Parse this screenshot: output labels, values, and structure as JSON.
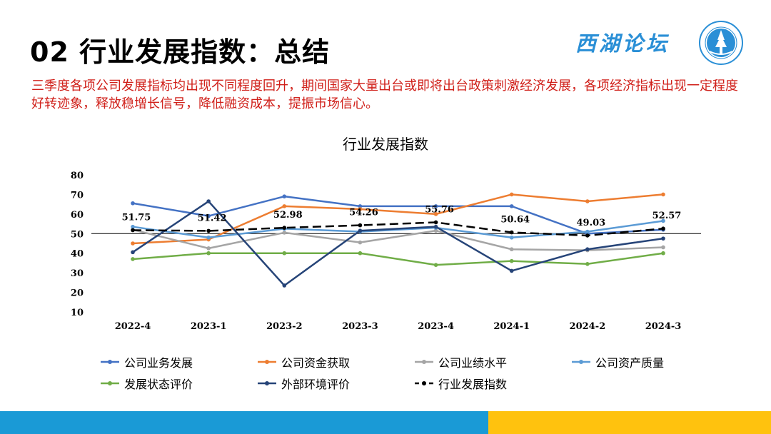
{
  "header": {
    "title": "02 行业发展指数：总结",
    "brand": "西湖论坛"
  },
  "summary": "三季度各项公司发展指标均出现不同程度回升，期间国家大量出台或即将出台政策刺激经济发展，各项经济指标出现一定程度好转迹象，释放稳增长信号，降低融资成本，提振市场信心。",
  "chart_data": {
    "type": "line",
    "title": "行业发展指数",
    "xlabel": "",
    "ylabel": "",
    "ylim": [
      10,
      80
    ],
    "yticks": [
      10,
      20,
      30,
      40,
      50,
      60,
      70,
      80
    ],
    "reference_line": 50,
    "grid": false,
    "legend_position": "bottom",
    "categories": [
      "2022-4",
      "2023-1",
      "2023-2",
      "2023-3",
      "2023-4",
      "2024-1",
      "2024-2",
      "2024-3"
    ],
    "series": [
      {
        "name": "公司业务发展",
        "color": "#4472c4",
        "dashed": false,
        "values": [
          65.5,
          59,
          69,
          64,
          64,
          64,
          50,
          52
        ]
      },
      {
        "name": "公司资金获取",
        "color": "#ed7d31",
        "dashed": false,
        "values": [
          45,
          47,
          64,
          62.5,
          60,
          70,
          66.5,
          70
        ]
      },
      {
        "name": "公司业绩水平",
        "color": "#a5a5a5",
        "dashed": false,
        "values": [
          52,
          42.5,
          50.5,
          45.5,
          51.5,
          42,
          41.5,
          43
        ]
      },
      {
        "name": "公司资产质量",
        "color": "#5b9bd5",
        "dashed": false,
        "values": [
          53.5,
          48,
          52.5,
          51,
          53,
          48,
          51,
          56.5
        ]
      },
      {
        "name": "发展状态评价",
        "color": "#70ad47",
        "dashed": false,
        "values": [
          37,
          40,
          40,
          40,
          34,
          36,
          34.5,
          40
        ]
      },
      {
        "name": "外部环境评价",
        "color": "#264478",
        "dashed": false,
        "values": [
          40.5,
          66.5,
          23.5,
          51.5,
          53.5,
          31,
          42,
          47.5
        ]
      },
      {
        "name": "行业发展指数",
        "color": "#000000",
        "dashed": true,
        "values": [
          51.75,
          51.42,
          52.98,
          54.26,
          55.76,
          50.64,
          49.03,
          52.57
        ],
        "data_labels": [
          "51.75",
          "51.42",
          "52.98",
          "54.26",
          "55.76",
          "50.64",
          "49.03",
          "52.57"
        ]
      }
    ]
  }
}
